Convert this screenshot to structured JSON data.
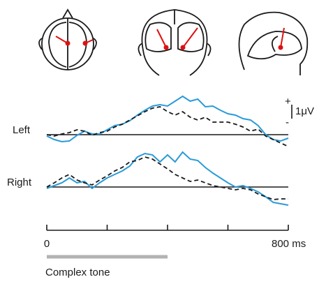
{
  "chart_data": [
    {
      "type": "line",
      "label": "Left",
      "x": [
        0,
        25,
        50,
        75,
        100,
        125,
        150,
        175,
        200,
        225,
        250,
        275,
        300,
        325,
        350,
        375,
        400,
        425,
        450,
        475,
        500,
        525,
        550,
        575,
        600,
        625,
        650,
        675,
        700,
        725,
        750,
        775,
        800
      ],
      "series": [
        {
          "color": "#2a9bd8",
          "dash": false,
          "values": [
            -0.1,
            -0.35,
            -0.5,
            -0.45,
            -0.05,
            0.25,
            0.05,
            0.05,
            0.35,
            0.65,
            0.75,
            1.0,
            1.4,
            1.75,
            2.05,
            2.15,
            2.05,
            2.4,
            2.75,
            2.4,
            2.55,
            2.0,
            2.05,
            1.75,
            1.5,
            1.4,
            1.15,
            1.05,
            0.65,
            0,
            -0.35,
            -0.45,
            -0.25
          ]
        },
        {
          "color": "#1a1a1a",
          "dash": true,
          "values": [
            0,
            -0.1,
            0.05,
            0.15,
            0.35,
            0.25,
            -0.05,
            0.15,
            0.25,
            0.55,
            0.75,
            1.05,
            1.35,
            1.65,
            1.9,
            2.0,
            1.65,
            1.4,
            1.65,
            1.25,
            1.05,
            1.25,
            0.9,
            0.9,
            0.9,
            0.75,
            0.55,
            0.25,
            0.4,
            -0.1,
            -0.35,
            -0.6,
            -0.85
          ]
        }
      ],
      "xlim": [
        0,
        800
      ],
      "ylim": [
        -1.1,
        3.15
      ],
      "scale_bar": {
        "value": 1,
        "label": "1μV",
        "plus": "+",
        "minus": "-"
      }
    },
    {
      "type": "line",
      "label": "Right",
      "x": [
        0,
        25,
        50,
        75,
        100,
        125,
        150,
        175,
        200,
        225,
        250,
        275,
        300,
        325,
        350,
        375,
        400,
        425,
        450,
        475,
        500,
        525,
        550,
        575,
        600,
        625,
        650,
        675,
        700,
        725,
        750,
        775,
        800
      ],
      "series": [
        {
          "color": "#2a9bd8",
          "dash": false,
          "values": [
            -0.1,
            0.1,
            0.3,
            0.65,
            0.3,
            0.4,
            -0.1,
            0.3,
            0.65,
            0.9,
            1.15,
            1.5,
            2.15,
            2.4,
            2.3,
            1.8,
            2.3,
            1.8,
            2.5,
            2.0,
            1.9,
            1.4,
            1.0,
            0.65,
            0.3,
            0,
            0.1,
            -0.1,
            -0.35,
            -0.7,
            -1.1,
            -1.2,
            -1.3
          ]
        },
        {
          "color": "#1a1a1a",
          "dash": true,
          "values": [
            0,
            0.3,
            0.65,
            0.9,
            0.5,
            0.3,
            0.15,
            0.5,
            0.8,
            1.15,
            1.4,
            1.8,
            1.9,
            2.15,
            2.0,
            1.65,
            1.3,
            0.9,
            0.65,
            0.4,
            0.5,
            0.3,
            0.1,
            0,
            -0.1,
            -0.2,
            -0.1,
            -0.2,
            -0.5,
            -0.7,
            -0.9,
            -0.85,
            -0.85
          ]
        }
      ],
      "xlim": [
        0,
        800
      ],
      "ylim": [
        -1.6,
        3.15
      ],
      "xticks": [
        0,
        {
          "value": 800,
          "label": "800 ms"
        }
      ],
      "minor_xticks": [
        200,
        400,
        600
      ],
      "stimulus": {
        "label": "Complex tone",
        "xlim": [
          0,
          400
        ],
        "color": "#b3b3b3"
      }
    }
  ]
}
